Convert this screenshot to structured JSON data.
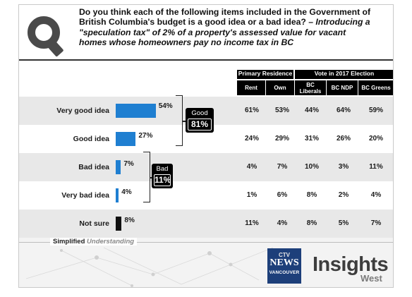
{
  "question": {
    "line1": "Do you think each of the following items included in the Government of British Columbia's budget is a good idea or a bad idea? –",
    "line2": "Introducing a \"speculation tax\" of 2% of a property's assessed value for vacant homes whose homeowners pay no income tax in BC"
  },
  "headers": {
    "group1": "Primary Residence",
    "group2": "Vote in 2017 Election",
    "sub": [
      "Rent",
      "Own",
      "BC Liberals",
      "BC NDP",
      "BC Greens"
    ]
  },
  "chart_data": {
    "type": "bar",
    "orientation": "horizontal",
    "categories": [
      "Very good idea",
      "Good idea",
      "Bad idea",
      "Very bad idea",
      "Not sure"
    ],
    "values": [
      54,
      27,
      7,
      4,
      8
    ],
    "value_labels": [
      "54%",
      "27%",
      "7%",
      "4%",
      "8%"
    ],
    "bar_colors": [
      "#1f7fd1",
      "#1f7fd1",
      "#1f7fd1",
      "#1f7fd1",
      "#111111"
    ],
    "xlim": [
      0,
      100
    ],
    "nets": [
      {
        "name": "Good",
        "value": "81%",
        "rows": [
          0,
          1
        ]
      },
      {
        "name": "Bad",
        "value": "11%",
        "rows": [
          2,
          3
        ]
      }
    ],
    "table": {
      "columns": [
        "Rent",
        "Own",
        "BC Liberals",
        "BC NDP",
        "BC Greens"
      ],
      "rows": [
        [
          "61%",
          "53%",
          "44%",
          "64%",
          "59%"
        ],
        [
          "24%",
          "29%",
          "31%",
          "26%",
          "20%"
        ],
        [
          "4%",
          "7%",
          "10%",
          "3%",
          "11%"
        ],
        [
          "1%",
          "6%",
          "8%",
          "2%",
          "4%"
        ],
        [
          "11%",
          "4%",
          "8%",
          "5%",
          "7%"
        ]
      ]
    }
  },
  "footer": {
    "brand_bold": "Simplified",
    "brand_italic": "Understanding",
    "ctv_top": "CTV",
    "ctv_news": "NEWS",
    "ctv_city": "VANCOUVER",
    "insights": "Insights",
    "west": "West"
  },
  "colors": {
    "accent_blue": "#1f7fd1",
    "dark": "#000000",
    "band_gray": "#e8e8e8"
  },
  "icons": [
    "search-magnifier-icon",
    "ctv-news-logo",
    "insights-west-logo"
  ]
}
